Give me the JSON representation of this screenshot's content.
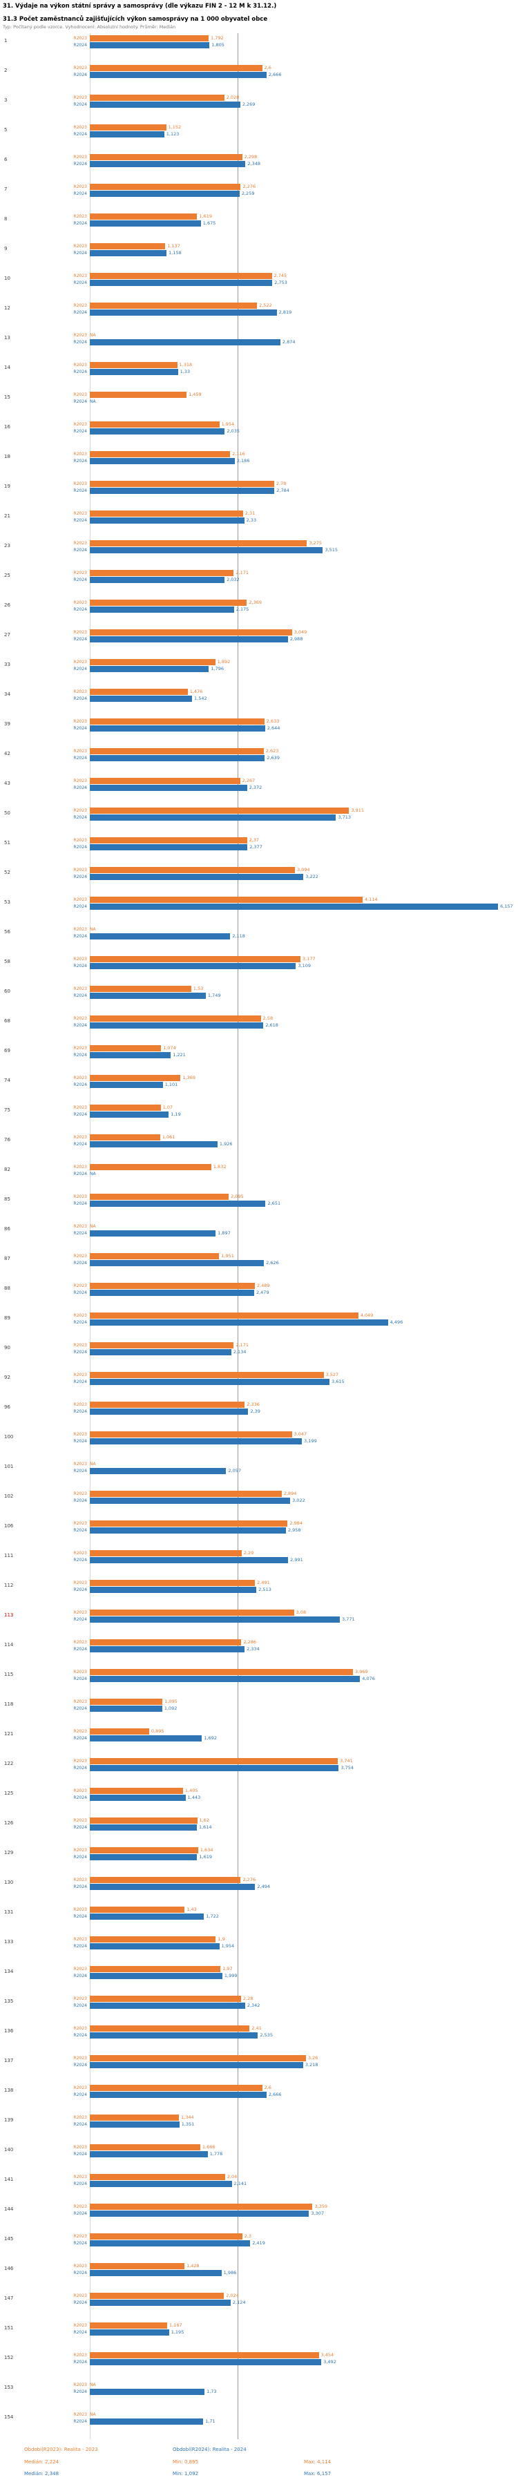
{
  "header": {
    "title": "31. Výdaje na výkon státní správy a samosprávy (dle výkazu FIN 2 - 12 M k 31.12.)",
    "subtitle": "31.3 Počet zaměstnanců zajišťujících výkon samosprávy na 1 000 obyvatel obce",
    "meta": "Typ: Počítaný podle vzorce. Vyhodnocení: Absolutní hodnoty. Průměr: Medián"
  },
  "legend": {
    "r2023_label": "Období(R2023): Realita - 2023",
    "r2024_label": "Období(R2024): Realita - 2024",
    "r2023_median": "Medián: 2,224",
    "r2023_min": "Min: 0,895",
    "r2023_max": "Max: 4,114",
    "r2024_median": "Medián: 2,348",
    "r2024_min": "Min: 1,092",
    "r2024_max": "Max: 6,157"
  },
  "chart_data": {
    "type": "bar",
    "orientation": "horizontal",
    "title": "31. Výdaje na výkon státní správy a samosprávy (dle výkazu FIN 2 - 12 M k 31.12.)",
    "subtitle": "31.3 Počet zaměstnanců zajišťujících výkon samosprávy na 1 000 obyvatel obce",
    "na_label": "NA",
    "highlighted_category": "113",
    "legend_position": "bottom",
    "grid": "median-line-only",
    "xlim": [
      0,
      6.5
    ],
    "categories": [
      "1",
      "2",
      "3",
      "5",
      "6",
      "7",
      "8",
      "9",
      "10",
      "12",
      "13",
      "14",
      "15",
      "16",
      "18",
      "19",
      "21",
      "23",
      "25",
      "26",
      "27",
      "33",
      "34",
      "39",
      "42",
      "43",
      "50",
      "51",
      "52",
      "53",
      "56",
      "58",
      "60",
      "68",
      "69",
      "74",
      "75",
      "76",
      "82",
      "85",
      "86",
      "87",
      "88",
      "89",
      "90",
      "92",
      "96",
      "100",
      "101",
      "102",
      "106",
      "111",
      "112",
      "113",
      "114",
      "115",
      "118",
      "121",
      "122",
      "125",
      "126",
      "129",
      "130",
      "131",
      "133",
      "134",
      "135",
      "136",
      "137",
      "138",
      "139",
      "140",
      "141",
      "144",
      "145",
      "146",
      "147",
      "151",
      "152",
      "153",
      "154"
    ],
    "series": [
      {
        "key": "R2023",
        "name": "Období(R2023): Realita - 2023",
        "color": "#ed7d31",
        "values": [
          1.792,
          2.6,
          2.028,
          1.152,
          2.298,
          2.276,
          1.619,
          1.137,
          2.745,
          2.522,
          null,
          1.318,
          1.459,
          1.954,
          2.116,
          2.78,
          2.31,
          3.275,
          2.171,
          2.369,
          3.049,
          1.892,
          1.476,
          2.633,
          2.623,
          2.267,
          3.911,
          2.37,
          3.094,
          4.114,
          null,
          3.177,
          1.53,
          2.58,
          1.074,
          1.369,
          1.07,
          1.061,
          1.832,
          2.095,
          null,
          1.951,
          2.489,
          4.049,
          2.171,
          3.527,
          2.336,
          3.047,
          null,
          2.894,
          2.984,
          2.29,
          2.491,
          3.08,
          2.286,
          3.969,
          1.095,
          0.895,
          3.741,
          1.405,
          1.62,
          1.634,
          2.276,
          1.43,
          1.9,
          1.97,
          2.28,
          2.41,
          3.26,
          2.6,
          1.344,
          1.666,
          2.04,
          3.359,
          2.3,
          1.428,
          2.024,
          1.167,
          3.454,
          null,
          null
        ]
      },
      {
        "key": "R2024",
        "name": "Období(R2024): Realita - 2024",
        "color": "#2e75b6",
        "values": [
          1.805,
          2.666,
          2.269,
          1.123,
          2.348,
          2.259,
          1.675,
          1.158,
          2.753,
          2.819,
          2.874,
          1.33,
          null,
          2.035,
          2.186,
          2.784,
          2.33,
          3.515,
          2.032,
          2.175,
          2.988,
          1.796,
          1.542,
          2.644,
          2.639,
          2.372,
          3.713,
          2.377,
          3.222,
          6.157,
          2.118,
          3.109,
          1.749,
          2.618,
          1.221,
          1.101,
          1.19,
          1.926,
          null,
          2.651,
          1.897,
          2.626,
          2.479,
          4.496,
          2.134,
          3.615,
          2.39,
          3.199,
          2.057,
          3.022,
          2.958,
          2.991,
          2.513,
          3.771,
          2.334,
          4.076,
          1.092,
          1.692,
          3.754,
          1.443,
          1.614,
          1.619,
          2.494,
          1.722,
          1.954,
          1.999,
          2.342,
          2.535,
          3.218,
          2.666,
          1.351,
          1.778,
          2.141,
          3.307,
          2.419,
          1.986,
          2.124,
          1.195,
          3.492,
          1.73,
          1.71
        ]
      }
    ],
    "stats": {
      "R2023": {
        "median": 2.224,
        "min": 0.895,
        "max": 4.114
      },
      "R2024": {
        "median": 2.348,
        "min": 1.092,
        "max": 6.157
      }
    },
    "median": {
      "R2023": 2.224,
      "R2024": 2.348
    }
  }
}
